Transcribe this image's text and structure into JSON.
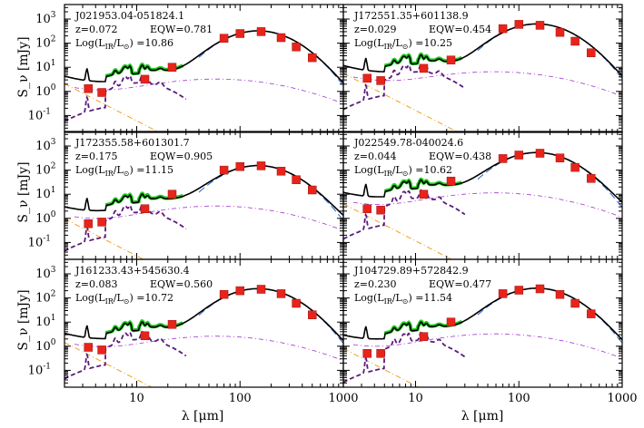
{
  "chart_data": {
    "type": "line",
    "layout": "3 rows x 2 columns",
    "xlabel": "λ [μm]",
    "ylabel": "S_ν [mJy]",
    "xscale": "log",
    "yscale": "log",
    "xlim": [
      2,
      1000
    ],
    "ylim": [
      0.02,
      4000
    ],
    "x_ticks": [
      "10",
      "100",
      "1000"
    ],
    "y_ticks": [
      "10^-1",
      "10^0",
      "10^1",
      "10^2",
      "10^3"
    ],
    "photometry_wavelengths": [
      3.4,
      4.6,
      12,
      22,
      70,
      100,
      160,
      250,
      350,
      500
    ],
    "panels": [
      {
        "name": "J021953.04-051824.1",
        "z_label": "z=0.072",
        "eqw_label": "EQW=0.781",
        "lir_label": "Log(L_IR/L_⊙) =10.86",
        "photometry_mJy": [
          1.3,
          0.9,
          3.2,
          10,
          160,
          250,
          300,
          170,
          70,
          25
        ],
        "peak_mJy": 320
      },
      {
        "name": "J172551.35+601138.9",
        "z_label": "z=0.029",
        "eqw_label": "EQW=0.454",
        "lir_label": "Log(L_IR/L_⊙) =10.25",
        "photometry_mJy": [
          3.5,
          2.8,
          9,
          20,
          400,
          600,
          550,
          280,
          120,
          40
        ],
        "peak_mJy": 620
      },
      {
        "name": "J172355.58+601301.7",
        "z_label": "z=0.175",
        "eqw_label": "EQW=0.905",
        "lir_label": "Log(L_IR/L_⊙) =11.15",
        "photometry_mJy": [
          0.6,
          0.7,
          2.5,
          10,
          100,
          140,
          150,
          90,
          40,
          15
        ],
        "peak_mJy": 150
      },
      {
        "name": "J022549.78-040024.6",
        "z_label": "z=0.044",
        "eqw_label": "EQW=0.438",
        "lir_label": "Log(L_IR/L_⊙) =10.62",
        "photometry_mJy": [
          2.5,
          2.2,
          10,
          35,
          300,
          420,
          500,
          320,
          130,
          45
        ],
        "peak_mJy": 520
      },
      {
        "name": "J161233.43+545630.4",
        "z_label": "z=0.083",
        "eqw_label": "EQW=0.560",
        "lir_label": "Log(L_IR/L_⊙) =10.72",
        "photometry_mJy": [
          0.9,
          0.7,
          2.7,
          8,
          140,
          200,
          230,
          150,
          60,
          20
        ],
        "peak_mJy": 240
      },
      {
        "name": "J104729.89+572842.9",
        "z_label": "z=0.230",
        "eqw_label": "EQW=0.477",
        "lir_label": "Log(L_IR/L_⊙) =11.54",
        "photometry_mJy": [
          0.5,
          0.5,
          2.5,
          10,
          150,
          210,
          240,
          140,
          60,
          22
        ],
        "peak_mJy": 250
      }
    ],
    "series": [
      {
        "name": "",
        "color": "#000000",
        "style": "solid"
      },
      {
        "name": "",
        "color": "#2a5fd0",
        "style": "dashed"
      },
      {
        "name": "",
        "color": "#f0a020",
        "style": "dash-dot"
      },
      {
        "name": "",
        "color": "#a030d0",
        "style": "dash-dot"
      },
      {
        "name": "",
        "color": "#5a1a7a",
        "style": "dashed"
      },
      {
        "name": "",
        "color": "#22cc22",
        "style": "solid"
      },
      {
        "name": "",
        "color": "#e8241a",
        "style": "square markers"
      }
    ],
    "grid": false
  }
}
